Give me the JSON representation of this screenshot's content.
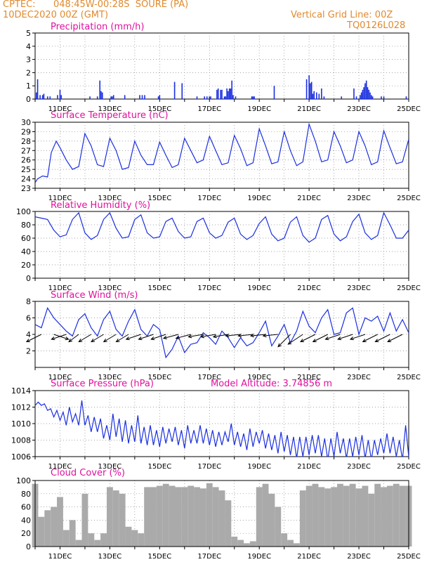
{
  "header": {
    "source": "CPTEC:",
    "location": "048:45W-00:28S  SOURE (PA)",
    "datetime": "10DEC2020 00Z (GMT)",
    "grid_note": "Vertical Grid Line: 00Z",
    "run_id": "TQ0126L028"
  },
  "colors": {
    "header": "#e08a2e",
    "title": "#e0109e",
    "line": "#1b2fe0",
    "bar": "#1b2fe0",
    "cloud": "#aaaaaa",
    "vector": "#000000"
  },
  "x_axis": {
    "ticks": [
      "11DEC",
      "13DEC",
      "15DEC",
      "17DEC",
      "19DEC",
      "21DEC",
      "23DEC",
      "25DEC"
    ],
    "range_days": [
      0,
      15
    ]
  },
  "chart_data": [
    {
      "type": "bar",
      "title": "Precipitation (mm/h)",
      "ylim": [
        0,
        5
      ],
      "yticks": [
        "0",
        "1",
        "2",
        "3",
        "4",
        "5"
      ],
      "x": [
        0.05,
        0.1,
        0.2,
        0.3,
        0.35,
        0.5,
        0.6,
        0.9,
        1.0,
        1.05,
        2.2,
        2.5,
        2.6,
        2.65,
        2.7,
        3.05,
        3.1,
        3.15,
        3.6,
        4.2,
        4.3,
        4.4,
        4.95,
        5.0,
        5.6,
        5.9,
        6.5,
        6.8,
        6.9,
        7.0,
        7.05,
        7.3,
        7.35,
        7.45,
        7.5,
        7.6,
        7.65,
        7.7,
        7.75,
        7.8,
        7.85,
        7.9,
        7.95,
        8.05,
        8.7,
        8.75,
        8.8,
        9.6,
        10.9,
        11.0,
        11.05,
        11.1,
        11.15,
        11.2,
        11.3,
        11.4,
        11.5,
        11.6,
        12.3,
        12.8,
        12.9,
        13.05,
        13.1,
        13.15,
        13.2,
        13.25,
        13.3,
        13.35,
        13.4,
        13.45,
        13.5,
        13.55,
        13.9,
        14.0,
        14.9
      ],
      "values": [
        0.5,
        1.5,
        0.3,
        0.3,
        0.4,
        0.2,
        0.2,
        0.3,
        0.7,
        0.3,
        0.2,
        0.2,
        1.4,
        0.6,
        0.5,
        0.2,
        0.2,
        0.3,
        0.3,
        0.3,
        0.3,
        0.3,
        0.2,
        0.3,
        1.3,
        1.2,
        0.2,
        0.2,
        0.2,
        0.2,
        0.2,
        0.7,
        0.8,
        0.7,
        0.7,
        0.2,
        0.2,
        0.8,
        0.6,
        0.8,
        0.8,
        1.4,
        0.3,
        0.2,
        0.2,
        0.2,
        0.2,
        1.0,
        1.5,
        1.8,
        1.2,
        1.3,
        0.4,
        0.6,
        0.5,
        0.4,
        0.8,
        0.2,
        0.2,
        0.8,
        0.2,
        0.3,
        0.5,
        0.7,
        0.9,
        1.2,
        1.4,
        0.9,
        0.7,
        0.5,
        0.3,
        0.2,
        0.2,
        0.2,
        0.2
      ]
    },
    {
      "type": "line",
      "title": "Surface Temperature (nC)",
      "ylim": [
        23,
        30
      ],
      "yticks": [
        "23",
        "24",
        "25",
        "26",
        "27",
        "28",
        "29",
        "30"
      ],
      "series": [
        {
          "x": [
            0,
            0.1,
            0.3,
            0.5,
            0.65,
            0.85,
            1.0,
            1.25,
            1.5,
            1.75,
            2.0,
            2.25,
            2.5,
            2.75,
            3.0,
            3.25,
            3.5,
            3.75,
            4.0,
            4.25,
            4.5,
            4.75,
            5.0,
            5.25,
            5.5,
            5.75,
            6.0,
            6.25,
            6.5,
            6.75,
            7.0,
            7.25,
            7.5,
            7.75,
            8.0,
            8.25,
            8.5,
            8.75,
            9.0,
            9.25,
            9.5,
            9.75,
            10.0,
            10.25,
            10.5,
            10.75,
            11.0,
            11.25,
            11.5,
            11.75,
            12.0,
            12.25,
            12.5,
            12.75,
            13.0,
            13.25,
            13.5,
            13.75,
            14.0,
            14.25,
            14.5,
            14.75,
            15.0
          ],
          "y": [
            23.6,
            24.0,
            24.3,
            24.2,
            26.8,
            28.0,
            27.3,
            26.0,
            25.0,
            25.3,
            28.8,
            27.5,
            25.5,
            25.3,
            28.3,
            27.0,
            25.0,
            25.2,
            28.0,
            26.5,
            25.5,
            25.5,
            27.9,
            26.5,
            25.2,
            25.5,
            28.3,
            27.0,
            25.7,
            26.0,
            28.5,
            27.0,
            25.5,
            25.7,
            28.6,
            27.2,
            25.4,
            25.7,
            29.3,
            27.5,
            25.6,
            25.8,
            29.0,
            27.0,
            25.4,
            25.8,
            29.8,
            28.0,
            25.8,
            26.0,
            29.0,
            27.5,
            25.7,
            26.0,
            29.0,
            27.5,
            25.5,
            25.8,
            29.1,
            27.3,
            25.6,
            25.8,
            28.2
          ]
        }
      ]
    },
    {
      "type": "line",
      "title": "Relative Humidity (%)",
      "ylim": [
        0,
        100
      ],
      "yticks": [
        "0",
        "20",
        "40",
        "60",
        "80",
        "100"
      ],
      "series": [
        {
          "x": [
            0,
            0.25,
            0.5,
            0.75,
            1.0,
            1.25,
            1.5,
            1.75,
            2.0,
            2.25,
            2.5,
            2.75,
            3.0,
            3.25,
            3.5,
            3.75,
            4.0,
            4.25,
            4.5,
            4.75,
            5.0,
            5.25,
            5.5,
            5.75,
            6.0,
            6.25,
            6.5,
            6.75,
            7.0,
            7.25,
            7.5,
            7.75,
            8.0,
            8.25,
            8.5,
            8.75,
            9.0,
            9.25,
            9.5,
            9.75,
            10.0,
            10.25,
            10.5,
            10.75,
            11.0,
            11.25,
            11.5,
            11.75,
            12.0,
            12.25,
            12.5,
            12.75,
            13.0,
            13.25,
            13.5,
            13.75,
            14.0,
            14.25,
            14.5,
            14.75,
            15.0
          ],
          "y": [
            92,
            90,
            88,
            72,
            62,
            65,
            88,
            98,
            68,
            58,
            64,
            88,
            98,
            75,
            60,
            62,
            88,
            95,
            68,
            60,
            62,
            85,
            90,
            70,
            60,
            62,
            85,
            90,
            68,
            60,
            64,
            84,
            90,
            66,
            58,
            64,
            82,
            92,
            66,
            56,
            60,
            84,
            92,
            64,
            54,
            60,
            88,
            94,
            66,
            56,
            62,
            85,
            96,
            68,
            58,
            64,
            98,
            80,
            60,
            60,
            72
          ]
        }
      ]
    },
    {
      "type": "line",
      "title": "Surface Wind (m/s)",
      "ylim": [
        0,
        8
      ],
      "yticks": [
        "2",
        "4",
        "6",
        "8"
      ],
      "series": [
        {
          "x": [
            0,
            0.25,
            0.5,
            0.75,
            1.0,
            1.25,
            1.5,
            1.75,
            2.0,
            2.25,
            2.5,
            2.75,
            3.0,
            3.25,
            3.5,
            3.75,
            4.0,
            4.25,
            4.5,
            4.75,
            5.0,
            5.25,
            5.5,
            5.75,
            6.0,
            6.25,
            6.5,
            6.75,
            7.0,
            7.25,
            7.5,
            7.75,
            8.0,
            8.25,
            8.5,
            8.75,
            9.0,
            9.25,
            9.5,
            9.75,
            10.0,
            10.25,
            10.5,
            10.75,
            11.0,
            11.25,
            11.5,
            11.75,
            12.0,
            12.25,
            12.5,
            12.75,
            13.0,
            13.25,
            13.5,
            13.75,
            14.0,
            14.25,
            14.5,
            14.75,
            15.0
          ],
          "y": [
            5.2,
            4.8,
            7.2,
            6.0,
            5.2,
            4.4,
            3.8,
            5.8,
            6.5,
            4.8,
            3.8,
            5.8,
            6.8,
            4.6,
            3.8,
            5.6,
            7.0,
            4.6,
            3.8,
            5.2,
            4.6,
            1.2,
            2.2,
            3.8,
            1.8,
            2.8,
            3.0,
            4.2,
            3.6,
            2.8,
            4.4,
            3.6,
            2.4,
            3.6,
            2.6,
            3.0,
            4.2,
            5.6,
            2.6,
            3.8,
            5.2,
            3.0,
            4.4,
            6.8,
            5.0,
            4.2,
            6.0,
            7.0,
            4.0,
            4.2,
            6.6,
            7.2,
            4.0,
            6.0,
            5.6,
            6.2,
            4.4,
            6.6,
            4.4,
            5.8,
            4.2
          ]
        }
      ],
      "vectors": {
        "x": [
          0.25,
          0.75,
          1.25,
          1.75,
          2.25,
          2.75,
          3.25,
          3.75,
          4.25,
          4.75,
          5.25,
          5.75,
          6.25,
          6.75,
          7.25,
          7.75,
          8.25,
          8.75,
          9.25,
          9.75,
          10.25,
          10.75,
          11.25,
          11.75,
          12.25,
          12.75,
          13.25,
          13.75,
          14.25,
          14.75
        ],
        "u": [
          -3,
          3,
          -3,
          -2,
          -2.5,
          -2.5,
          -2.5,
          -2.5,
          -3,
          -3,
          -3,
          -3,
          -3,
          -3,
          -3,
          -3,
          -3,
          -3,
          -3,
          -3,
          -2.5,
          -3,
          -3,
          -3,
          -3,
          -3,
          -3,
          -3,
          -3,
          -3
        ],
        "v": [
          -1.5,
          -1,
          -1,
          -1.5,
          -1.5,
          -1.5,
          -1.5,
          -1.5,
          -1,
          -1,
          -1,
          -0.8,
          -0.8,
          -0.5,
          -0.5,
          -0.5,
          -0.3,
          -0.3,
          -0.3,
          -0.3,
          -2.5,
          -2,
          -1.5,
          -1.5,
          -1,
          -1,
          -1,
          -1.5,
          -1.5,
          -1.5
        ]
      }
    },
    {
      "type": "line",
      "title": "Surface Pressure (hPa)",
      "annotation": "Model Altitude: 3.74856 m",
      "ylim": [
        1006,
        1014
      ],
      "yticks": [
        "1006",
        "1008",
        "1010",
        "1012",
        "1014"
      ],
      "series": [
        {
          "x": [
            0,
            0.125,
            0.25,
            0.375,
            0.5,
            0.625,
            0.75,
            0.875,
            1.0,
            1.125,
            1.25,
            1.375,
            1.5,
            1.625,
            1.75,
            1.875,
            2.0,
            2.125,
            2.25,
            2.375,
            2.5,
            2.625,
            2.75,
            2.875,
            3.0,
            3.125,
            3.25,
            3.375,
            3.5,
            3.625,
            3.75,
            3.875,
            4.0,
            4.125,
            4.25,
            4.375,
            4.5,
            4.625,
            4.75,
            4.875,
            5.0,
            5.125,
            5.25,
            5.375,
            5.5,
            5.625,
            5.75,
            5.875,
            6.0,
            6.125,
            6.25,
            6.375,
            6.5,
            6.625,
            6.75,
            6.875,
            7.0,
            7.125,
            7.25,
            7.375,
            7.5,
            7.625,
            7.75,
            7.875,
            8.0,
            8.125,
            8.25,
            8.375,
            8.5,
            8.625,
            8.75,
            8.875,
            9.0,
            9.125,
            9.25,
            9.375,
            9.5,
            9.625,
            9.75,
            9.875,
            10.0,
            10.125,
            10.25,
            10.375,
            10.5,
            10.625,
            10.75,
            10.875,
            11.0,
            11.125,
            11.25,
            11.375,
            11.5,
            11.625,
            11.75,
            11.875,
            12.0,
            12.125,
            12.25,
            12.375,
            12.5,
            12.625,
            12.75,
            12.875,
            13.0,
            13.125,
            13.25,
            13.375,
            13.5,
            13.625,
            13.75,
            13.875,
            14.0,
            14.125,
            14.25,
            14.375,
            14.5,
            14.625,
            14.75,
            14.875,
            15.0
          ],
          "y": [
            1012.2,
            1012.6,
            1012.2,
            1012.4,
            1011.6,
            1011.8,
            1010.8,
            1011.6,
            1010.4,
            1011.4,
            1009.8,
            1012.0,
            1010.2,
            1011.2,
            1009.8,
            1012.8,
            1009.8,
            1011.0,
            1009.0,
            1010.8,
            1009.0,
            1010.6,
            1008.2,
            1009.8,
            1008.0,
            1011.2,
            1008.4,
            1010.6,
            1007.8,
            1010.4,
            1007.6,
            1009.8,
            1007.8,
            1011.0,
            1007.6,
            1009.6,
            1007.4,
            1009.8,
            1007.4,
            1009.2,
            1007.2,
            1009.6,
            1007.6,
            1009.4,
            1007.8,
            1009.6,
            1007.4,
            1009.2,
            1007.0,
            1009.8,
            1007.6,
            1009.2,
            1007.6,
            1009.8,
            1007.6,
            1009.4,
            1007.4,
            1009.2,
            1007.2,
            1009.0,
            1007.4,
            1009.0,
            1007.8,
            1010.0,
            1007.4,
            1009.0,
            1007.2,
            1008.8,
            1006.8,
            1009.4,
            1007.2,
            1009.0,
            1007.6,
            1009.2,
            1007.0,
            1008.8,
            1006.8,
            1008.6,
            1006.4,
            1009.0,
            1006.6,
            1008.6,
            1006.2,
            1008.4,
            1005.8,
            1008.4,
            1006.0,
            1008.4,
            1006.2,
            1008.6,
            1006.4,
            1008.6,
            1006.0,
            1008.2,
            1005.6,
            1008.2,
            1006.0,
            1009.0,
            1006.4,
            1008.2,
            1005.8,
            1008.2,
            1006.0,
            1008.4,
            1006.2,
            1008.6,
            1005.8,
            1008.0,
            1005.6,
            1008.0,
            1006.2,
            1008.2,
            1006.4,
            1008.8,
            1006.4,
            1008.4,
            1006.0,
            1008.0,
            1005.6,
            1009.8,
            1006.0
          ]
        }
      ]
    },
    {
      "type": "area",
      "title": "Cloud Cover (%)",
      "ylim": [
        0,
        100
      ],
      "yticks": [
        "0",
        "20",
        "40",
        "60",
        "80",
        "100"
      ],
      "series": [
        {
          "x": [
            0,
            0.25,
            0.5,
            0.75,
            1.0,
            1.25,
            1.5,
            1.75,
            2.0,
            2.25,
            2.5,
            2.75,
            3.0,
            3.25,
            3.5,
            3.75,
            4.0,
            4.25,
            4.5,
            4.75,
            5.0,
            5.25,
            5.5,
            5.75,
            6.0,
            6.25,
            6.5,
            6.75,
            7.0,
            7.25,
            7.5,
            7.75,
            8.0,
            8.25,
            8.5,
            8.75,
            9.0,
            9.25,
            9.5,
            9.75,
            10.0,
            10.25,
            10.5,
            10.75,
            11.0,
            11.25,
            11.5,
            11.75,
            12.0,
            12.25,
            12.5,
            12.75,
            13.0,
            13.25,
            13.5,
            13.75,
            14.0,
            14.25,
            14.5,
            14.75,
            15.0
          ],
          "y": [
            95,
            45,
            55,
            60,
            75,
            25,
            40,
            10,
            80,
            20,
            10,
            20,
            90,
            85,
            80,
            30,
            25,
            20,
            90,
            90,
            92,
            95,
            92,
            90,
            90,
            92,
            90,
            88,
            96,
            90,
            85,
            70,
            15,
            10,
            5,
            8,
            90,
            95,
            80,
            60,
            20,
            10,
            5,
            85,
            92,
            95,
            90,
            88,
            90,
            95,
            92,
            95,
            88,
            92,
            80,
            95,
            90,
            92,
            95,
            92,
            92
          ]
        }
      ]
    }
  ]
}
